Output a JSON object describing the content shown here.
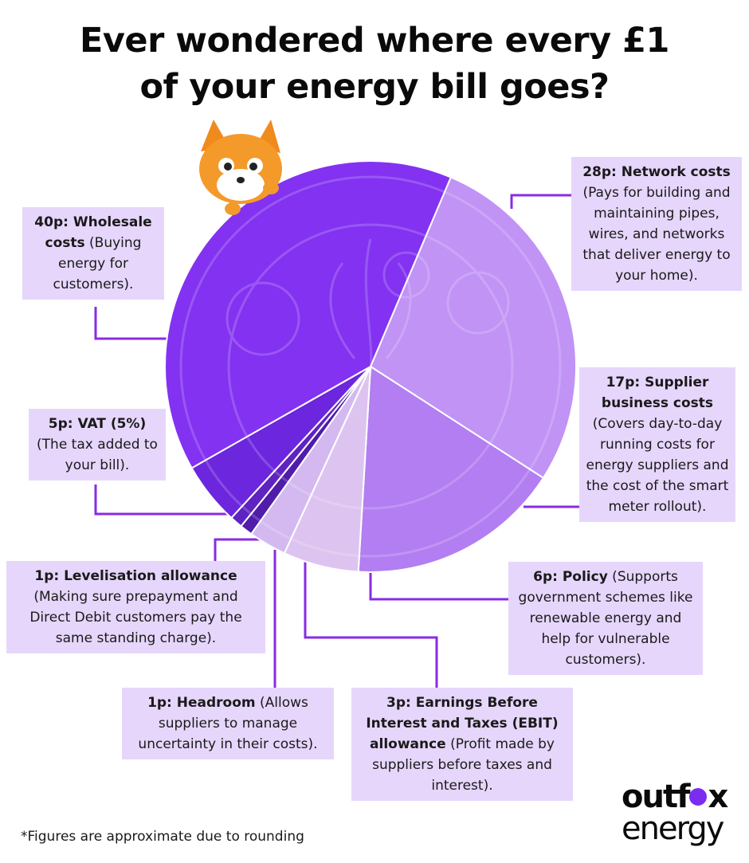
{
  "title_lines": [
    "Ever wondered where every £1",
    "of your energy bill goes?"
  ],
  "footnote": "*Figures are approximate due to rounding",
  "brand": {
    "line1_a": "outf",
    "line1_b": "x",
    "line2": "energy"
  },
  "colors": {
    "accent": "#7a2df0",
    "box_bg": "#e6d6fb",
    "connector": "#8a2be2"
  },
  "chart_data": {
    "type": "pie",
    "unit": "p",
    "slices": [
      {
        "label": "Network costs",
        "value": 28,
        "color": "#c9a2f5"
      },
      {
        "label": "Supplier business costs",
        "value": 17,
        "color": "#b98af0"
      },
      {
        "label": "Policy",
        "value": 6,
        "color": "#ead9ef"
      },
      {
        "label": "Earnings Before Interest and Taxes (EBIT) allowance",
        "value": 3,
        "color": "#e0cdf0"
      },
      {
        "label": "Headroom",
        "value": 1,
        "color": "#4a1a9e"
      },
      {
        "label": "Levelisation allowance",
        "value": 1,
        "color": "#5a22b8"
      },
      {
        "label": "VAT (5%)",
        "value": 5,
        "color": "#6a25d9"
      },
      {
        "label": "Wholesale costs",
        "value": 40,
        "color": "#8433f0"
      }
    ]
  },
  "labels": {
    "network": {
      "bold": "28p: Network costs",
      "rest": " (Pays for building and maintaining pipes, wires, and networks that deliver energy to your home)."
    },
    "supplier": {
      "bold": "17p: Supplier business costs",
      "rest": " (Covers day-to-day running costs for energy suppliers and the cost of the smart meter rollout)."
    },
    "policy": {
      "bold": "6p: Policy",
      "rest": " (Supports government schemes like renewable energy and help for vulnerable customers)."
    },
    "ebit": {
      "bold": "3p: Earnings Before Interest and Taxes (EBIT) allowance",
      "rest": " (Profit made by suppliers before taxes and interest)."
    },
    "headroom": {
      "bold": "1p:  Headroom",
      "rest": " (Allows suppliers to manage uncertainty in their costs)."
    },
    "levelisation": {
      "bold": "1p: Levelisation allowance",
      "rest": " (Making sure prepayment and Direct Debit customers pay the same standing charge)."
    },
    "vat": {
      "bold": "5p: VAT (5%)",
      "rest": " (The tax added to your bill)."
    },
    "wholesale": {
      "bold": "40p: Wholesale costs",
      "rest": " (Buying energy for customers)."
    }
  }
}
